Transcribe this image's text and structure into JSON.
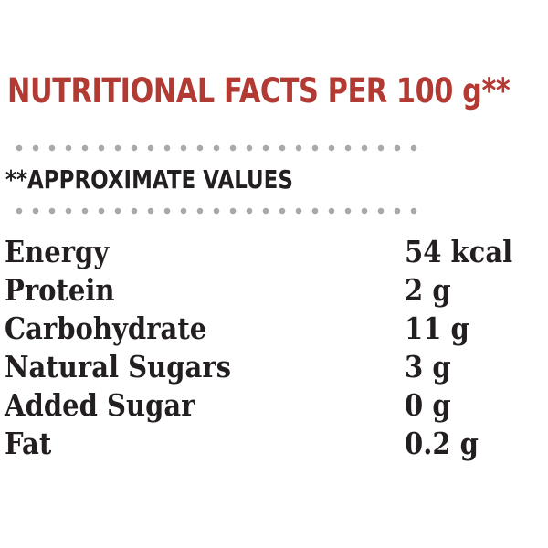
{
  "title": "NUTRITIONAL FACTS PER 100 g**",
  "subtitle": "**APPROXIMATE VALUES",
  "colors": {
    "title": "#b33a33",
    "text": "#231f20",
    "dots": "#a9a9a9"
  },
  "nutrients": [
    {
      "label": "Energy",
      "value": "54 kcal"
    },
    {
      "label": "Protein",
      "value": "2 g"
    },
    {
      "label": "Carbohydrate",
      "value": "11 g"
    },
    {
      "label": "Natural Sugars",
      "value": "3 g"
    },
    {
      "label": "Added Sugar",
      "value": "0 g"
    },
    {
      "label": "Fat",
      "value": "0.2 g"
    }
  ]
}
